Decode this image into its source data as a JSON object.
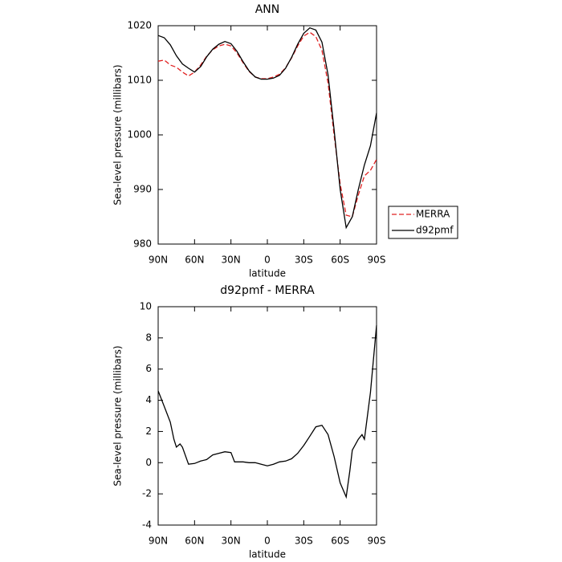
{
  "chart_data": [
    {
      "type": "line",
      "title": "ANN",
      "xlabel": "latitude",
      "ylabel": "Sea-level pressure (millibars)",
      "x": [
        90,
        85,
        80,
        75,
        70,
        65,
        60,
        55,
        50,
        45,
        40,
        35,
        30,
        25,
        20,
        15,
        10,
        5,
        0,
        -5,
        -10,
        -15,
        -20,
        -25,
        -30,
        -35,
        -40,
        -45,
        -50,
        -55,
        -60,
        -65,
        -70,
        -75,
        -80,
        -85,
        -90
      ],
      "xlim": [
        90,
        -90
      ],
      "xticks": [
        {
          "value": 90,
          "label": "90N"
        },
        {
          "value": 60,
          "label": "60N"
        },
        {
          "value": 30,
          "label": "30N"
        },
        0,
        {
          "value": -30,
          "label": "30S"
        },
        {
          "value": -60,
          "label": "60S"
        },
        {
          "value": -90,
          "label": "90S"
        }
      ],
      "ylim": [
        980,
        1020
      ],
      "yticks": [
        980,
        990,
        1000,
        1010,
        1020
      ],
      "legend": "right",
      "series": [
        {
          "name": "MERRA",
          "color": "#e02020",
          "linestyle": "dashed",
          "values": [
            1013.5,
            1013.7,
            1012.8,
            1012.4,
            1011.5,
            1010.8,
            1011.5,
            1012.8,
            1014.4,
            1015.6,
            1016.3,
            1016.6,
            1016.3,
            1015,
            1013.2,
            1011.6,
            1010.6,
            1010.3,
            1010.3,
            1010.6,
            1011.1,
            1012.3,
            1014.1,
            1016.3,
            1018.1,
            1018.8,
            1018,
            1015.5,
            1009.5,
            1000,
            991,
            985.3,
            985,
            989,
            992.5,
            993.5,
            995.5
          ]
        },
        {
          "name": "d92pmf",
          "color": "#000000",
          "linestyle": "solid",
          "values": [
            1018.2,
            1017.8,
            1016.5,
            1014.5,
            1013,
            1012.2,
            1011.5,
            1012.5,
            1014.3,
            1015.7,
            1016.6,
            1017.1,
            1016.7,
            1015.3,
            1013.4,
            1011.7,
            1010.6,
            1010.2,
            1010.2,
            1010.4,
            1010.9,
            1012.2,
            1014.2,
            1016.6,
            1018.6,
            1019.6,
            1019.2,
            1017,
            1011,
            1001,
            990,
            983,
            985,
            990,
            994.5,
            998,
            1004
          ]
        }
      ]
    },
    {
      "type": "line",
      "title": "d92pmf - MERRA",
      "xlabel": "latitude",
      "ylabel": "Sea-level pressure (millibars)",
      "x": [
        90,
        85,
        80,
        77,
        75,
        72,
        70,
        65,
        60,
        55,
        50,
        45,
        40,
        35,
        30,
        27,
        20,
        15,
        10,
        5,
        0,
        -5,
        -10,
        -15,
        -20,
        -25,
        -30,
        -35,
        -40,
        -45,
        -50,
        -55,
        -60,
        -65,
        -68,
        -70,
        -75,
        -78,
        -80,
        -85,
        -90
      ],
      "xlim": [
        90,
        -90
      ],
      "xticks": [
        {
          "value": 90,
          "label": "90N"
        },
        {
          "value": 60,
          "label": "60N"
        },
        {
          "value": 30,
          "label": "30N"
        },
        0,
        {
          "value": -30,
          "label": "30S"
        },
        {
          "value": -60,
          "label": "60S"
        },
        {
          "value": -90,
          "label": "90S"
        }
      ],
      "ylim": [
        -4,
        10
      ],
      "yticks": [
        -4,
        -2,
        0,
        2,
        4,
        6,
        8,
        10
      ],
      "series": [
        {
          "color": "#000000",
          "linestyle": "solid",
          "values": [
            4.6,
            3.6,
            2.6,
            1.5,
            1.0,
            1.2,
            1.0,
            -0.1,
            -0.05,
            0.1,
            0.2,
            0.5,
            0.6,
            0.7,
            0.65,
            0.05,
            0.05,
            0,
            0,
            -0.1,
            -0.2,
            -0.1,
            0.05,
            0.1,
            0.25,
            0.6,
            1.1,
            1.7,
            2.3,
            2.4,
            1.8,
            0.4,
            -1.3,
            -2.2,
            -0.5,
            0.8,
            1.5,
            1.8,
            1.5,
            4.5,
            8.8
          ]
        }
      ]
    }
  ]
}
